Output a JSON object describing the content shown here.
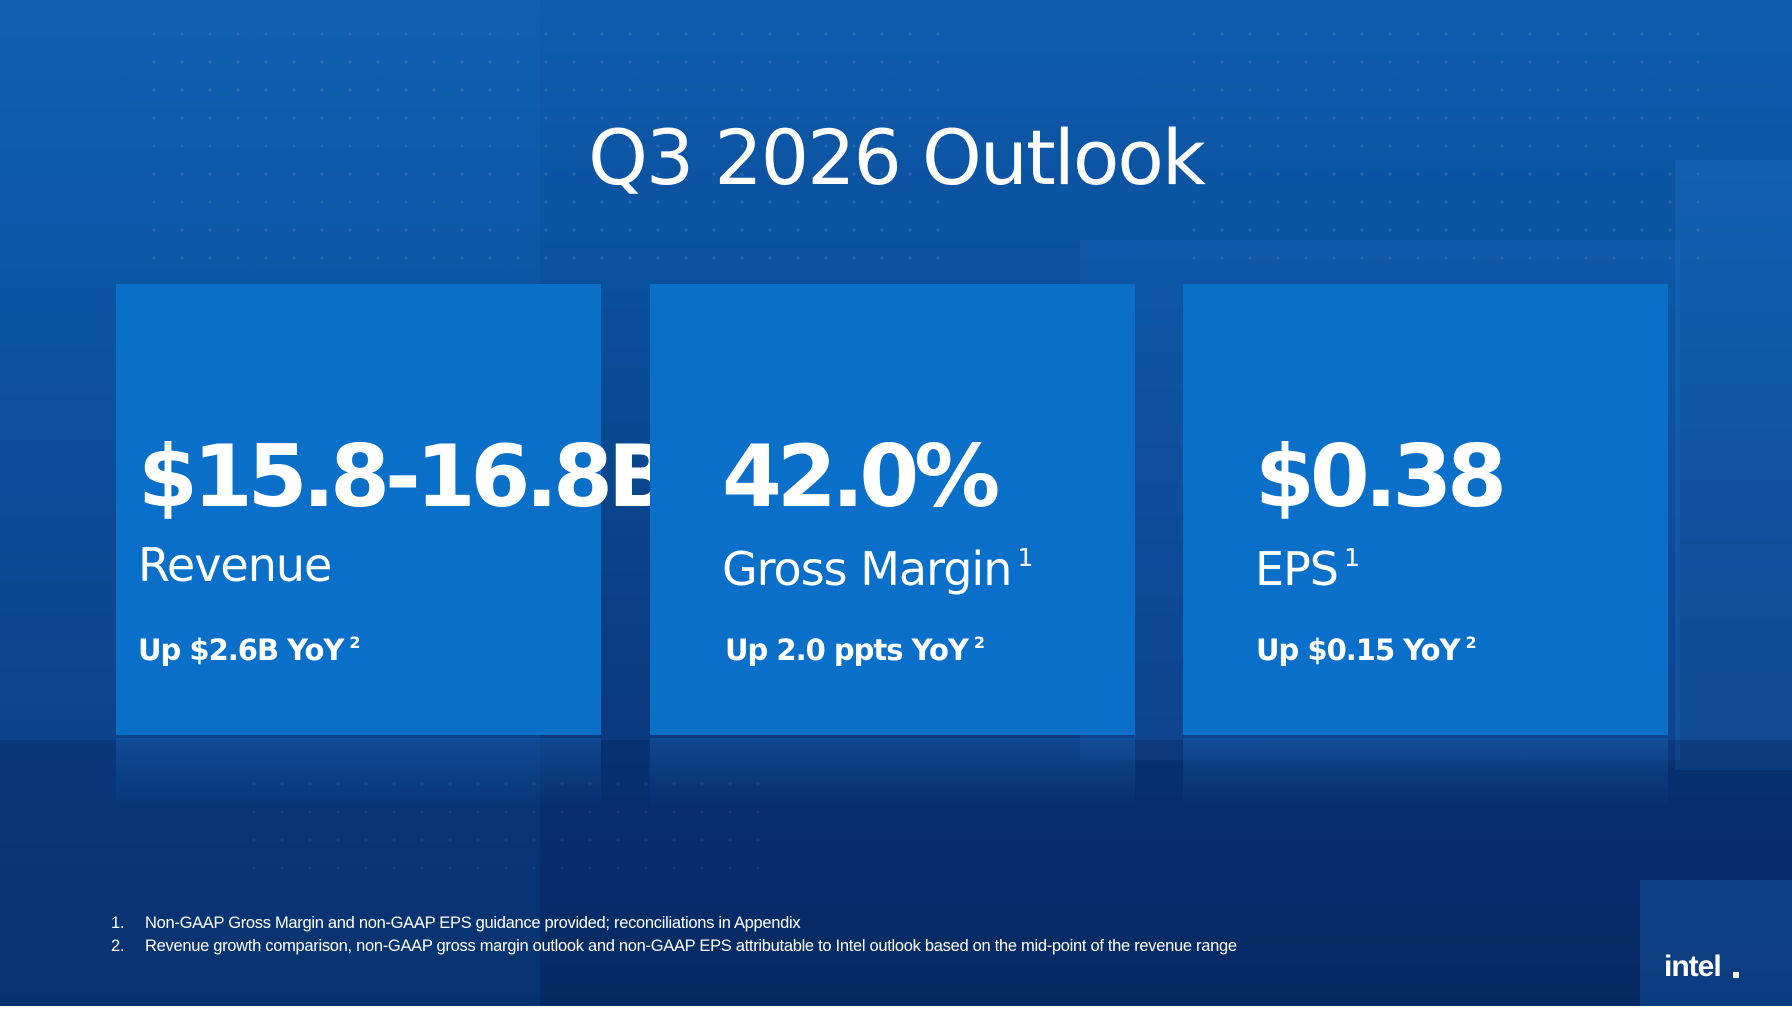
{
  "slide": {
    "title": "Q3 2026 Outlook"
  },
  "cards": [
    {
      "value": "$15.8-16.8B",
      "label": "Revenue",
      "label_footnote": "",
      "sub": "Up $2.6B YoY",
      "sub_footnote": "2"
    },
    {
      "value": "42.0%",
      "label": "Gross Margin",
      "label_footnote": "1",
      "sub": "Up 2.0 ppts YoY",
      "sub_footnote": "2"
    },
    {
      "value": "$0.38",
      "label": "EPS",
      "label_footnote": "1",
      "sub": "Up $0.15 YoY",
      "sub_footnote": "2"
    }
  ],
  "footnotes": [
    {
      "number": "1.",
      "text": "Non-GAAP Gross Margin and non-GAAP EPS guidance provided; reconciliations in Appendix"
    },
    {
      "number": "2.",
      "text": "Revenue growth comparison, non-GAAP gross margin outlook and non-GAAP EPS attributable to Intel outlook based on the mid-point of the revenue range"
    }
  ],
  "logo": {
    "text": "intel"
  },
  "colors": {
    "background_top": "#0f5cae",
    "background_bottom": "#082f6c",
    "card": "#0a6fc8",
    "text": "#ffffff"
  }
}
